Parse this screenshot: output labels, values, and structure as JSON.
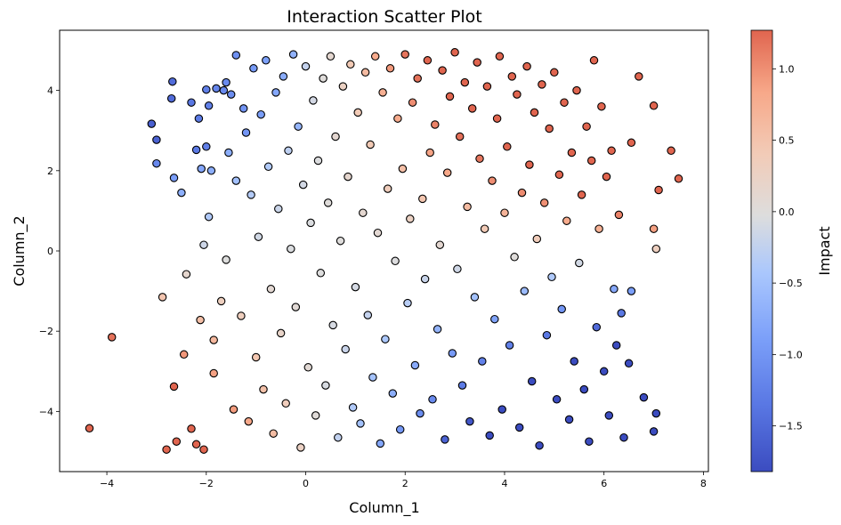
{
  "chart_data": {
    "type": "scatter",
    "title": "Interaction Scatter Plot",
    "xlabel": "Column_1",
    "ylabel": "Column_2",
    "xlim": [
      -4.95,
      8.1
    ],
    "ylim": [
      -5.5,
      5.5
    ],
    "x_ticks": [
      -4,
      -2,
      0,
      2,
      4,
      6,
      8
    ],
    "x_tick_labels": [
      "−4",
      "−2",
      "0",
      "2",
      "4",
      "6",
      "8"
    ],
    "y_ticks": [
      -4,
      -2,
      0,
      2,
      4
    ],
    "y_tick_labels": [
      "−4",
      "−2",
      "0",
      "2",
      "4"
    ],
    "grid": false,
    "marker_edge_color": "#000000",
    "colorbar": {
      "label": "Impact",
      "colormap": "coolwarm",
      "range": [
        -1.82,
        1.27
      ],
      "ticks": [
        1.0,
        0.5,
        0.0,
        -0.5,
        -1.0,
        -1.5
      ],
      "tick_labels": [
        "1.0",
        "0.5",
        "0.0",
        "−0.5",
        "−1.0",
        "−1.5"
      ],
      "colors": {
        "low": "#3b4cc0",
        "mid": "#dddddd",
        "high": "#e0654f"
      }
    },
    "color_rule": "impact = 0.35 * Column_1 * Column_2 / (1 + 0.3*|Column_1|) approx",
    "points": [
      [
        -4.35,
        -4.42
      ],
      [
        -3.9,
        -2.15
      ],
      [
        -3.1,
        3.17
      ],
      [
        -3.0,
        2.77
      ],
      [
        -3.0,
        2.18
      ],
      [
        -2.88,
        -1.15
      ],
      [
        -2.8,
        -4.95
      ],
      [
        -2.7,
        3.8
      ],
      [
        -2.68,
        4.22
      ],
      [
        -2.65,
        -3.38
      ],
      [
        -2.65,
        1.82
      ],
      [
        -2.6,
        -4.75
      ],
      [
        -2.5,
        1.45
      ],
      [
        -2.45,
        -2.58
      ],
      [
        -2.4,
        -0.58
      ],
      [
        -2.3,
        -4.43
      ],
      [
        -2.3,
        3.7
      ],
      [
        -2.2,
        2.52
      ],
      [
        -2.2,
        -4.82
      ],
      [
        -2.15,
        3.3
      ],
      [
        -2.12,
        -1.72
      ],
      [
        -2.1,
        2.05
      ],
      [
        -2.05,
        0.15
      ],
      [
        -2.05,
        -4.95
      ],
      [
        -2.0,
        2.6
      ],
      [
        -2.0,
        4.02
      ],
      [
        -1.95,
        3.62
      ],
      [
        -1.95,
        0.85
      ],
      [
        -1.9,
        2.0
      ],
      [
        -1.85,
        -3.05
      ],
      [
        -1.85,
        -2.22
      ],
      [
        -1.8,
        4.05
      ],
      [
        -1.7,
        -1.25
      ],
      [
        -1.65,
        4.0
      ],
      [
        -1.6,
        -0.22
      ],
      [
        -1.6,
        4.2
      ],
      [
        -1.55,
        2.45
      ],
      [
        -1.5,
        3.9
      ],
      [
        -1.45,
        -3.95
      ],
      [
        -1.4,
        1.75
      ],
      [
        -1.4,
        4.88
      ],
      [
        -1.3,
        -1.62
      ],
      [
        -1.25,
        3.55
      ],
      [
        -1.2,
        2.95
      ],
      [
        -1.15,
        -4.25
      ],
      [
        -1.1,
        1.4
      ],
      [
        -1.05,
        4.55
      ],
      [
        -1.0,
        -2.65
      ],
      [
        -0.95,
        0.35
      ],
      [
        -0.9,
        3.4
      ],
      [
        -0.85,
        -3.45
      ],
      [
        -0.8,
        4.75
      ],
      [
        -0.75,
        2.1
      ],
      [
        -0.7,
        -0.95
      ],
      [
        -0.65,
        -4.55
      ],
      [
        -0.6,
        3.95
      ],
      [
        -0.55,
        1.05
      ],
      [
        -0.5,
        -2.05
      ],
      [
        -0.45,
        4.35
      ],
      [
        -0.4,
        -3.8
      ],
      [
        -0.35,
        2.5
      ],
      [
        -0.3,
        0.05
      ],
      [
        -0.25,
        4.9
      ],
      [
        -0.2,
        -1.4
      ],
      [
        -0.15,
        3.1
      ],
      [
        -0.1,
        -4.9
      ],
      [
        -0.05,
        1.65
      ],
      [
        0.0,
        4.6
      ],
      [
        0.05,
        -2.9
      ],
      [
        0.1,
        0.7
      ],
      [
        0.15,
        3.75
      ],
      [
        0.2,
        -4.1
      ],
      [
        0.25,
        2.25
      ],
      [
        0.3,
        -0.55
      ],
      [
        0.35,
        4.3
      ],
      [
        0.4,
        -3.35
      ],
      [
        0.45,
        1.2
      ],
      [
        0.5,
        4.85
      ],
      [
        0.55,
        -1.85
      ],
      [
        0.6,
        2.85
      ],
      [
        0.65,
        -4.65
      ],
      [
        0.7,
        0.25
      ],
      [
        0.75,
        4.1
      ],
      [
        0.8,
        -2.45
      ],
      [
        0.85,
        1.85
      ],
      [
        0.9,
        4.65
      ],
      [
        0.95,
        -3.9
      ],
      [
        1.0,
        -0.9
      ],
      [
        1.05,
        3.45
      ],
      [
        1.1,
        -4.3
      ],
      [
        1.15,
        0.95
      ],
      [
        1.2,
        4.45
      ],
      [
        1.25,
        -1.6
      ],
      [
        1.3,
        2.65
      ],
      [
        1.35,
        -3.15
      ],
      [
        1.4,
        4.85
      ],
      [
        1.45,
        0.45
      ],
      [
        1.5,
        -4.8
      ],
      [
        1.55,
        3.95
      ],
      [
        1.6,
        -2.2
      ],
      [
        1.65,
        1.55
      ],
      [
        1.7,
        4.55
      ],
      [
        1.75,
        -3.55
      ],
      [
        1.8,
        -0.25
      ],
      [
        1.85,
        3.3
      ],
      [
        1.9,
        -4.45
      ],
      [
        1.95,
        2.05
      ],
      [
        2.0,
        4.9
      ],
      [
        2.05,
        -1.3
      ],
      [
        2.1,
        0.8
      ],
      [
        2.15,
        3.7
      ],
      [
        2.2,
        -2.85
      ],
      [
        2.25,
        4.3
      ],
      [
        2.3,
        -4.05
      ],
      [
        2.35,
        1.3
      ],
      [
        2.4,
        -0.7
      ],
      [
        2.45,
        4.75
      ],
      [
        2.5,
        2.45
      ],
      [
        2.55,
        -3.7
      ],
      [
        2.6,
        3.15
      ],
      [
        2.65,
        -1.95
      ],
      [
        2.7,
        0.15
      ],
      [
        2.75,
        4.5
      ],
      [
        2.8,
        -4.7
      ],
      [
        2.85,
        1.95
      ],
      [
        2.9,
        3.85
      ],
      [
        2.95,
        -2.55
      ],
      [
        3.0,
        4.95
      ],
      [
        3.05,
        -0.45
      ],
      [
        3.1,
        2.85
      ],
      [
        3.15,
        -3.35
      ],
      [
        3.2,
        4.2
      ],
      [
        3.25,
        1.1
      ],
      [
        3.3,
        -4.25
      ],
      [
        3.35,
        3.55
      ],
      [
        3.4,
        -1.15
      ],
      [
        3.45,
        4.7
      ],
      [
        3.5,
        2.3
      ],
      [
        3.55,
        -2.75
      ],
      [
        3.6,
        0.55
      ],
      [
        3.65,
        4.1
      ],
      [
        3.7,
        -4.6
      ],
      [
        3.75,
        1.75
      ],
      [
        3.8,
        -1.7
      ],
      [
        3.85,
        3.3
      ],
      [
        3.9,
        4.85
      ],
      [
        3.95,
        -3.95
      ],
      [
        4.0,
        0.95
      ],
      [
        4.05,
        2.6
      ],
      [
        4.1,
        -2.35
      ],
      [
        4.15,
        4.35
      ],
      [
        4.2,
        -0.15
      ],
      [
        4.25,
        3.9
      ],
      [
        4.3,
        -4.4
      ],
      [
        4.35,
        1.45
      ],
      [
        4.4,
        -1.0
      ],
      [
        4.45,
        4.6
      ],
      [
        4.5,
        2.15
      ],
      [
        4.55,
        -3.25
      ],
      [
        4.6,
        3.45
      ],
      [
        4.65,
        0.3
      ],
      [
        4.7,
        -4.85
      ],
      [
        4.75,
        4.15
      ],
      [
        4.8,
        1.2
      ],
      [
        4.85,
        -2.1
      ],
      [
        4.9,
        3.05
      ],
      [
        4.95,
        -0.65
      ],
      [
        5.0,
        4.45
      ],
      [
        5.05,
        -3.7
      ],
      [
        5.1,
        1.9
      ],
      [
        5.15,
        -1.45
      ],
      [
        5.2,
        3.7
      ],
      [
        5.25,
        0.75
      ],
      [
        5.3,
        -4.2
      ],
      [
        5.35,
        2.45
      ],
      [
        5.4,
        -2.75
      ],
      [
        5.45,
        4.0
      ],
      [
        5.5,
        -0.3
      ],
      [
        5.55,
        1.4
      ],
      [
        5.6,
        -3.45
      ],
      [
        5.65,
        3.1
      ],
      [
        5.7,
        -4.75
      ],
      [
        5.75,
        2.25
      ],
      [
        5.8,
        4.75
      ],
      [
        5.85,
        -1.9
      ],
      [
        5.9,
        0.55
      ],
      [
        5.95,
        3.6
      ],
      [
        6.0,
        -3.0
      ],
      [
        6.05,
        1.85
      ],
      [
        6.1,
        -4.1
      ],
      [
        6.15,
        2.5
      ],
      [
        6.2,
        -0.95
      ],
      [
        6.25,
        -2.35
      ],
      [
        6.3,
        0.9
      ],
      [
        6.35,
        -1.55
      ],
      [
        6.4,
        -4.65
      ],
      [
        6.5,
        -2.8
      ],
      [
        6.55,
        -1.0
      ],
      [
        6.55,
        2.7
      ],
      [
        6.7,
        4.35
      ],
      [
        6.8,
        -3.65
      ],
      [
        7.0,
        0.55
      ],
      [
        7.0,
        -4.5
      ],
      [
        7.0,
        3.62
      ],
      [
        7.05,
        0.05
      ],
      [
        7.05,
        -4.05
      ],
      [
        7.1,
        1.52
      ],
      [
        7.35,
        2.5
      ],
      [
        7.5,
        1.8
      ]
    ]
  }
}
